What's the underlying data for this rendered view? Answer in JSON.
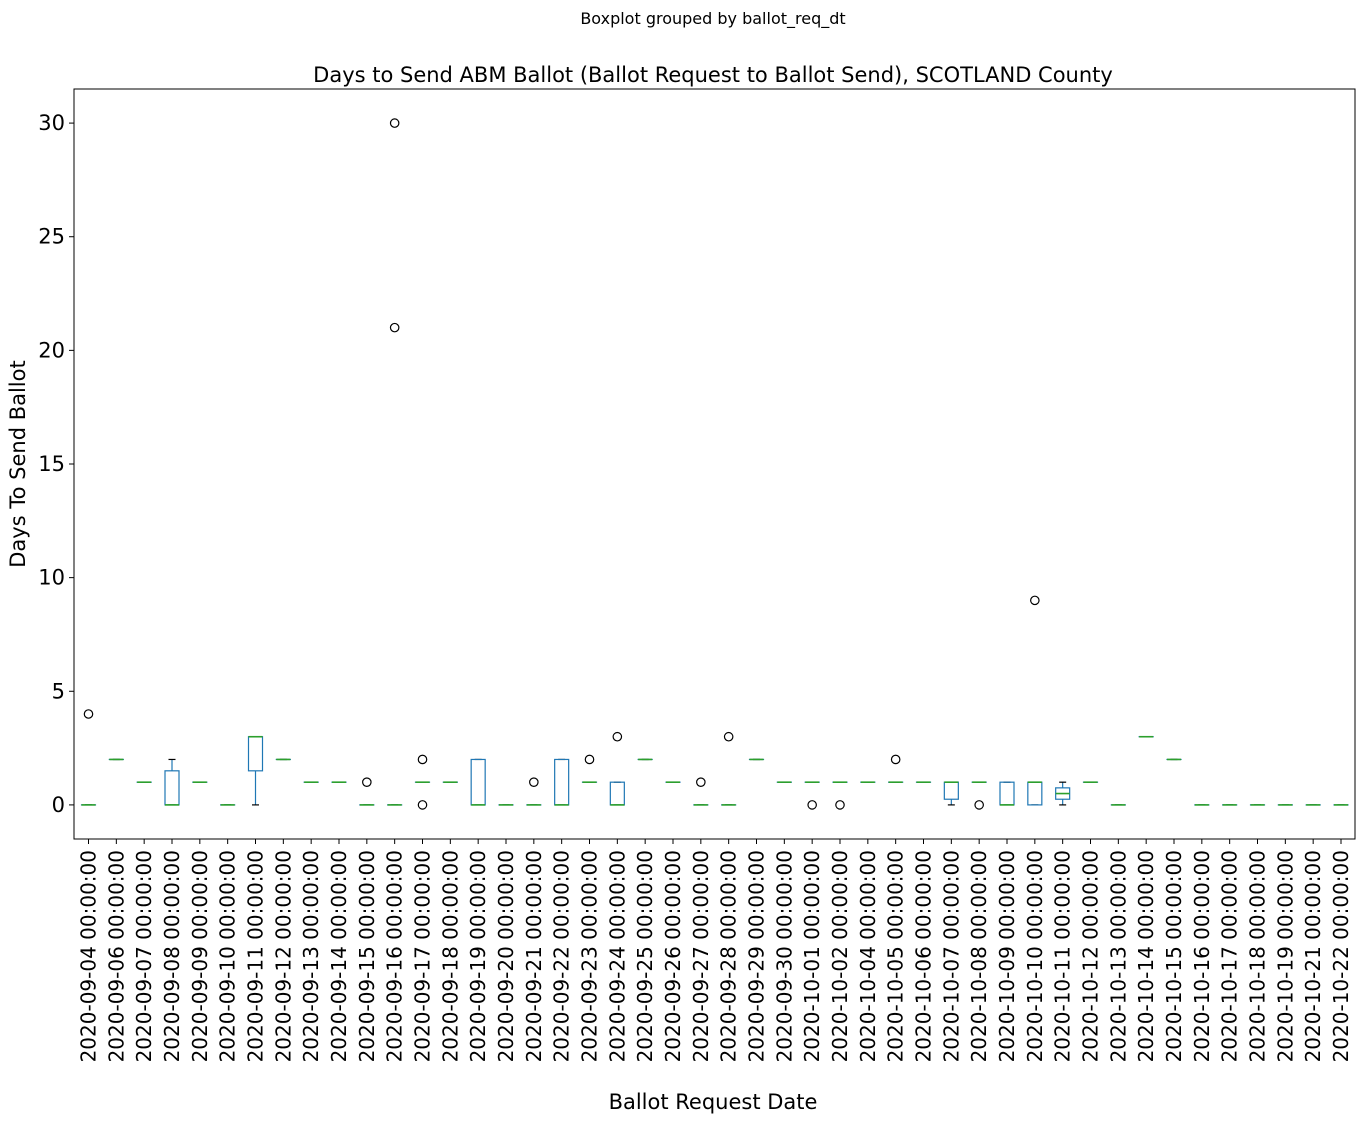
{
  "chart_data": {
    "type": "boxplot",
    "suptitle": "Boxplot grouped by ballot_req_dt",
    "title": "Days to Send ABM Ballot (Ballot Request to Ballot Send), SCOTLAND County",
    "xlabel": "Ballot Request Date",
    "ylabel": "Days To Send Ballot",
    "ylim": [
      -1.5,
      31.5
    ],
    "yticks": [
      0,
      5,
      10,
      15,
      20,
      25,
      30
    ],
    "grid": false,
    "colors": {
      "box": "#1f77b4",
      "median": "#2ca02c",
      "whisker": "#000000",
      "flier": "#000000"
    },
    "categories": [
      "2020-09-04 00:00:00",
      "2020-09-06 00:00:00",
      "2020-09-07 00:00:00",
      "2020-09-08 00:00:00",
      "2020-09-09 00:00:00",
      "2020-09-10 00:00:00",
      "2020-09-11 00:00:00",
      "2020-09-12 00:00:00",
      "2020-09-13 00:00:00",
      "2020-09-14 00:00:00",
      "2020-09-15 00:00:00",
      "2020-09-16 00:00:00",
      "2020-09-17 00:00:00",
      "2020-09-18 00:00:00",
      "2020-09-19 00:00:00",
      "2020-09-20 00:00:00",
      "2020-09-21 00:00:00",
      "2020-09-22 00:00:00",
      "2020-09-23 00:00:00",
      "2020-09-24 00:00:00",
      "2020-09-25 00:00:00",
      "2020-09-26 00:00:00",
      "2020-09-27 00:00:00",
      "2020-09-28 00:00:00",
      "2020-09-29 00:00:00",
      "2020-09-30 00:00:00",
      "2020-10-01 00:00:00",
      "2020-10-02 00:00:00",
      "2020-10-04 00:00:00",
      "2020-10-05 00:00:00",
      "2020-10-06 00:00:00",
      "2020-10-07 00:00:00",
      "2020-10-08 00:00:00",
      "2020-10-09 00:00:00",
      "2020-10-10 00:00:00",
      "2020-10-11 00:00:00",
      "2020-10-12 00:00:00",
      "2020-10-13 00:00:00",
      "2020-10-14 00:00:00",
      "2020-10-15 00:00:00",
      "2020-10-16 00:00:00",
      "2020-10-17 00:00:00",
      "2020-10-18 00:00:00",
      "2020-10-19 00:00:00",
      "2020-10-21 00:00:00",
      "2020-10-22 00:00:00"
    ],
    "boxes": [
      {
        "whislo": 0,
        "q1": 0,
        "med": 0,
        "q3": 0,
        "whishi": 0,
        "fliers": [
          4
        ]
      },
      {
        "whislo": 2,
        "q1": 2,
        "med": 2,
        "q3": 2,
        "whishi": 2,
        "fliers": []
      },
      {
        "whislo": 1,
        "q1": 1,
        "med": 1,
        "q3": 1,
        "whishi": 1,
        "fliers": []
      },
      {
        "whislo": 0,
        "q1": 0,
        "med": 0,
        "q3": 1.5,
        "whishi": 2,
        "fliers": []
      },
      {
        "whislo": 1,
        "q1": 1,
        "med": 1,
        "q3": 1,
        "whishi": 1,
        "fliers": []
      },
      {
        "whislo": 0,
        "q1": 0,
        "med": 0,
        "q3": 0,
        "whishi": 0,
        "fliers": []
      },
      {
        "whislo": 0,
        "q1": 1.5,
        "med": 3,
        "q3": 3,
        "whishi": 3,
        "fliers": []
      },
      {
        "whislo": 2,
        "q1": 2,
        "med": 2,
        "q3": 2,
        "whishi": 2,
        "fliers": []
      },
      {
        "whislo": 1,
        "q1": 1,
        "med": 1,
        "q3": 1,
        "whishi": 1,
        "fliers": []
      },
      {
        "whislo": 1,
        "q1": 1,
        "med": 1,
        "q3": 1,
        "whishi": 1,
        "fliers": []
      },
      {
        "whislo": 0,
        "q1": 0,
        "med": 0,
        "q3": 0,
        "whishi": 0,
        "fliers": [
          1
        ]
      },
      {
        "whislo": 0,
        "q1": 0,
        "med": 0,
        "q3": 0,
        "whishi": 0,
        "fliers": [
          30,
          21
        ]
      },
      {
        "whislo": 1,
        "q1": 1,
        "med": 1,
        "q3": 1,
        "whishi": 1,
        "fliers": [
          2,
          0
        ]
      },
      {
        "whislo": 1,
        "q1": 1,
        "med": 1,
        "q3": 1,
        "whishi": 1,
        "fliers": []
      },
      {
        "whislo": 0,
        "q1": 0,
        "med": 0,
        "q3": 2,
        "whishi": 2,
        "fliers": []
      },
      {
        "whislo": 0,
        "q1": 0,
        "med": 0,
        "q3": 0,
        "whishi": 0,
        "fliers": []
      },
      {
        "whislo": 0,
        "q1": 0,
        "med": 0,
        "q3": 0,
        "whishi": 0,
        "fliers": [
          1
        ]
      },
      {
        "whislo": 0,
        "q1": 0,
        "med": 0,
        "q3": 2,
        "whishi": 2,
        "fliers": []
      },
      {
        "whislo": 1,
        "q1": 1,
        "med": 1,
        "q3": 1,
        "whishi": 1,
        "fliers": [
          2
        ]
      },
      {
        "whislo": 0,
        "q1": 0,
        "med": 0,
        "q3": 1,
        "whishi": 1,
        "fliers": [
          3
        ]
      },
      {
        "whislo": 2,
        "q1": 2,
        "med": 2,
        "q3": 2,
        "whishi": 2,
        "fliers": []
      },
      {
        "whislo": 1,
        "q1": 1,
        "med": 1,
        "q3": 1,
        "whishi": 1,
        "fliers": []
      },
      {
        "whislo": 0,
        "q1": 0,
        "med": 0,
        "q3": 0,
        "whishi": 0,
        "fliers": [
          1
        ]
      },
      {
        "whislo": 0,
        "q1": 0,
        "med": 0,
        "q3": 0,
        "whishi": 0,
        "fliers": [
          3
        ]
      },
      {
        "whislo": 2,
        "q1": 2,
        "med": 2,
        "q3": 2,
        "whishi": 2,
        "fliers": []
      },
      {
        "whislo": 1,
        "q1": 1,
        "med": 1,
        "q3": 1,
        "whishi": 1,
        "fliers": []
      },
      {
        "whislo": 1,
        "q1": 1,
        "med": 1,
        "q3": 1,
        "whishi": 1,
        "fliers": [
          0
        ]
      },
      {
        "whislo": 1,
        "q1": 1,
        "med": 1,
        "q3": 1,
        "whishi": 1,
        "fliers": [
          0
        ]
      },
      {
        "whislo": 1,
        "q1": 1,
        "med": 1,
        "q3": 1,
        "whishi": 1,
        "fliers": []
      },
      {
        "whislo": 1,
        "q1": 1,
        "med": 1,
        "q3": 1,
        "whishi": 1,
        "fliers": [
          2
        ]
      },
      {
        "whislo": 1,
        "q1": 1,
        "med": 1,
        "q3": 1,
        "whishi": 1,
        "fliers": []
      },
      {
        "whislo": 0,
        "q1": 0.25,
        "med": 1,
        "q3": 1,
        "whishi": 1,
        "fliers": []
      },
      {
        "whislo": 1,
        "q1": 1,
        "med": 1,
        "q3": 1,
        "whishi": 1,
        "fliers": [
          0
        ]
      },
      {
        "whislo": 0,
        "q1": 0,
        "med": 0,
        "q3": 1,
        "whishi": 1,
        "fliers": []
      },
      {
        "whislo": 0,
        "q1": 0,
        "med": 1,
        "q3": 1,
        "whishi": 1,
        "fliers": [
          9
        ]
      },
      {
        "whislo": 0,
        "q1": 0.25,
        "med": 0.5,
        "q3": 0.75,
        "whishi": 1,
        "fliers": []
      },
      {
        "whislo": 1,
        "q1": 1,
        "med": 1,
        "q3": 1,
        "whishi": 1,
        "fliers": []
      },
      {
        "whislo": 0,
        "q1": 0,
        "med": 0,
        "q3": 0,
        "whishi": 0,
        "fliers": []
      },
      {
        "whislo": 3,
        "q1": 3,
        "med": 3,
        "q3": 3,
        "whishi": 3,
        "fliers": []
      },
      {
        "whislo": 2,
        "q1": 2,
        "med": 2,
        "q3": 2,
        "whishi": 2,
        "fliers": []
      },
      {
        "whislo": 0,
        "q1": 0,
        "med": 0,
        "q3": 0,
        "whishi": 0,
        "fliers": []
      },
      {
        "whislo": 0,
        "q1": 0,
        "med": 0,
        "q3": 0,
        "whishi": 0,
        "fliers": []
      },
      {
        "whislo": 0,
        "q1": 0,
        "med": 0,
        "q3": 0,
        "whishi": 0,
        "fliers": []
      },
      {
        "whislo": 0,
        "q1": 0,
        "med": 0,
        "q3": 0,
        "whishi": 0,
        "fliers": []
      },
      {
        "whislo": 0,
        "q1": 0,
        "med": 0,
        "q3": 0,
        "whishi": 0,
        "fliers": []
      },
      {
        "whislo": 0,
        "q1": 0,
        "med": 0,
        "q3": 0,
        "whishi": 0,
        "fliers": []
      }
    ]
  }
}
